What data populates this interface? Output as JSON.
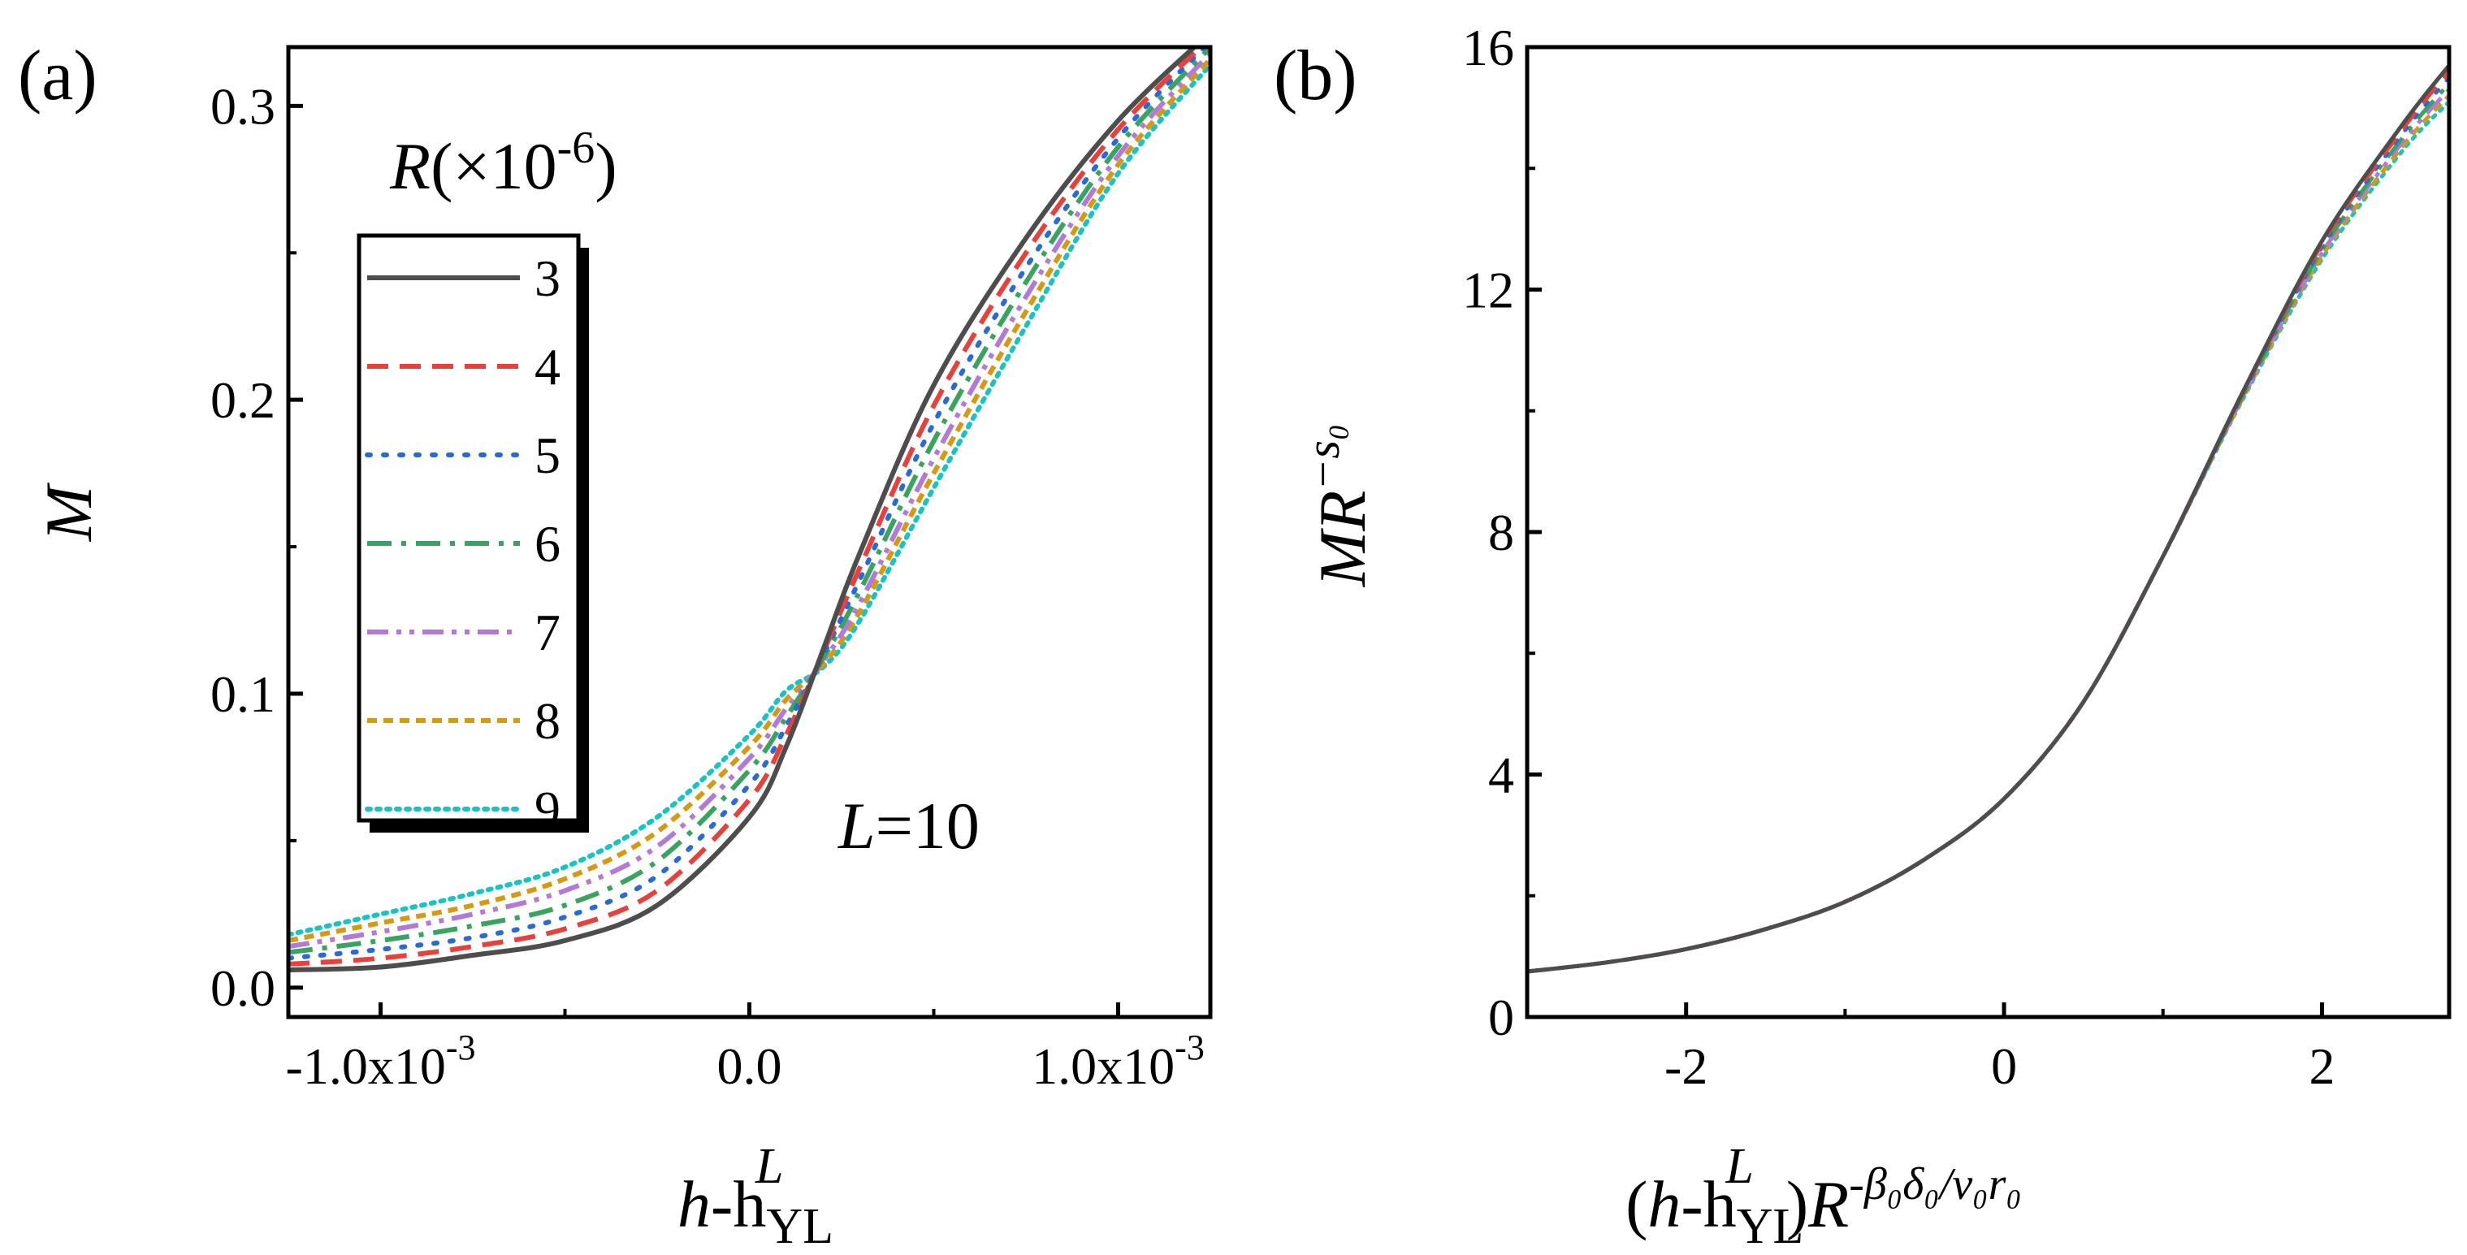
{
  "chart_data": [
    {
      "panel_label": "(a)",
      "type": "line",
      "xlabel": {
        "main": "h",
        "sep": "-h",
        "sub": "YL",
        "sup": "L"
      },
      "ylabel": "M",
      "xlim": [
        -0.00125,
        0.00125
      ],
      "ylim": [
        -0.01,
        0.32
      ],
      "xticks": [
        {
          "value": -0.001,
          "mant": "-1.0x10",
          "exp": "-3"
        },
        {
          "value": 0.0,
          "mant": "0.0",
          "exp": ""
        },
        {
          "value": 0.001,
          "mant": "1.0x10",
          "exp": "-3"
        }
      ],
      "yticks": [
        {
          "value": 0.0,
          "label": "0.0"
        },
        {
          "value": 0.1,
          "label": "0.1"
        },
        {
          "value": 0.2,
          "label": "0.2"
        },
        {
          "value": 0.3,
          "label": "0.3"
        }
      ],
      "legend": {
        "title_var": "R",
        "title_rest": "(×10",
        "title_exp": "-6",
        "title_close": ")",
        "placement": "upper-left"
      },
      "annotation": {
        "var": "L",
        "rest": "=10"
      },
      "x": [
        -0.00125,
        -0.001,
        -0.00075,
        -0.0005,
        -0.00025,
        0.0,
        0.0001,
        0.0002,
        0.0003,
        0.0005,
        0.00075,
        0.001,
        0.00125
      ],
      "series": [
        {
          "name": "3",
          "color": "#4d4d4d",
          "dash": "solid",
          "values": [
            0.006,
            0.007,
            0.011,
            0.016,
            0.028,
            0.058,
            0.082,
            0.115,
            0.148,
            0.205,
            0.255,
            0.295,
            0.325
          ]
        },
        {
          "name": "4",
          "color": "#e8413c",
          "dash": "dash",
          "values": [
            0.008,
            0.01,
            0.014,
            0.02,
            0.033,
            0.064,
            0.086,
            0.114,
            0.143,
            0.198,
            0.25,
            0.292,
            0.323
          ]
        },
        {
          "name": "5",
          "color": "#2a6ad6",
          "dash": "dot",
          "values": [
            0.01,
            0.013,
            0.017,
            0.024,
            0.038,
            0.069,
            0.089,
            0.113,
            0.139,
            0.192,
            0.245,
            0.289,
            0.322
          ]
        },
        {
          "name": "6",
          "color": "#3aa35f",
          "dash": "dashdot",
          "values": [
            0.012,
            0.016,
            0.021,
            0.028,
            0.043,
            0.074,
            0.092,
            0.112,
            0.135,
            0.186,
            0.24,
            0.286,
            0.32
          ]
        },
        {
          "name": "7",
          "color": "#b27ad6",
          "dash": "dashdotdot",
          "values": [
            0.014,
            0.019,
            0.025,
            0.033,
            0.048,
            0.078,
            0.095,
            0.111,
            0.131,
            0.18,
            0.235,
            0.283,
            0.318
          ]
        },
        {
          "name": "8",
          "color": "#d59a10",
          "dash": "shortdash",
          "values": [
            0.016,
            0.022,
            0.028,
            0.037,
            0.053,
            0.082,
            0.098,
            0.11,
            0.128,
            0.175,
            0.23,
            0.28,
            0.316
          ]
        },
        {
          "name": "9",
          "color": "#19c3c3",
          "dash": "densedot",
          "values": [
            0.018,
            0.025,
            0.032,
            0.041,
            0.058,
            0.086,
            0.101,
            0.109,
            0.125,
            0.17,
            0.225,
            0.277,
            0.314
          ]
        }
      ]
    },
    {
      "panel_label": "(b)",
      "type": "line",
      "xlabel": {
        "open": "(",
        "main": "h",
        "sep": "-h",
        "sub": "YL",
        "sup": "L",
        "close": ")",
        "R": "R",
        "exp": "-β₀δ₀/ν₀r₀"
      },
      "ylabel": {
        "main": "MR",
        "exp": "−s₀"
      },
      "xlim": [
        -3.0,
        2.8
      ],
      "ylim": [
        0,
        16
      ],
      "xticks": [
        {
          "value": -2,
          "label": "-2"
        },
        {
          "value": 0,
          "label": "0"
        },
        {
          "value": 2,
          "label": "2"
        }
      ],
      "yticks": [
        {
          "value": 0,
          "label": "0"
        },
        {
          "value": 4,
          "label": "4"
        },
        {
          "value": 8,
          "label": "8"
        },
        {
          "value": 12,
          "label": "12"
        },
        {
          "value": 16,
          "label": "16"
        }
      ],
      "x": [
        -3.0,
        -2.5,
        -2.0,
        -1.5,
        -1.0,
        -0.5,
        0.0,
        0.5,
        1.0,
        1.5,
        2.0,
        2.5,
        2.8
      ],
      "series": [
        {
          "name": "3",
          "color": "#4d4d4d",
          "dash": "solid",
          "values": [
            0.75,
            0.9,
            1.12,
            1.45,
            1.9,
            2.6,
            3.6,
            5.2,
            7.6,
            10.3,
            12.8,
            14.7,
            15.7
          ]
        },
        {
          "name": "4",
          "color": "#e8413c",
          "dash": "dash",
          "values": [
            0.75,
            0.9,
            1.12,
            1.45,
            1.9,
            2.6,
            3.6,
            5.2,
            7.6,
            10.28,
            12.75,
            14.62,
            15.6
          ]
        },
        {
          "name": "5",
          "color": "#2a6ad6",
          "dash": "dot",
          "values": [
            0.75,
            0.9,
            1.12,
            1.45,
            1.9,
            2.6,
            3.6,
            5.2,
            7.6,
            10.26,
            12.7,
            14.55,
            15.5
          ]
        },
        {
          "name": "6",
          "color": "#3aa35f",
          "dash": "dashdot",
          "values": [
            0.75,
            0.9,
            1.12,
            1.45,
            1.9,
            2.6,
            3.6,
            5.2,
            7.6,
            10.24,
            12.65,
            14.48,
            15.4
          ]
        },
        {
          "name": "7",
          "color": "#b27ad6",
          "dash": "dashdotdot",
          "values": [
            0.75,
            0.9,
            1.12,
            1.45,
            1.9,
            2.6,
            3.6,
            5.2,
            7.6,
            10.22,
            12.6,
            14.41,
            15.3
          ]
        },
        {
          "name": "8",
          "color": "#d59a10",
          "dash": "shortdash",
          "values": [
            0.75,
            0.9,
            1.12,
            1.45,
            1.9,
            2.6,
            3.6,
            5.2,
            7.6,
            10.2,
            12.55,
            14.34,
            15.2
          ]
        },
        {
          "name": "9",
          "color": "#19c3c3",
          "dash": "densedot",
          "values": [
            0.75,
            0.9,
            1.12,
            1.45,
            1.9,
            2.6,
            3.6,
            5.2,
            7.6,
            10.18,
            12.5,
            14.27,
            15.1
          ]
        }
      ]
    }
  ]
}
